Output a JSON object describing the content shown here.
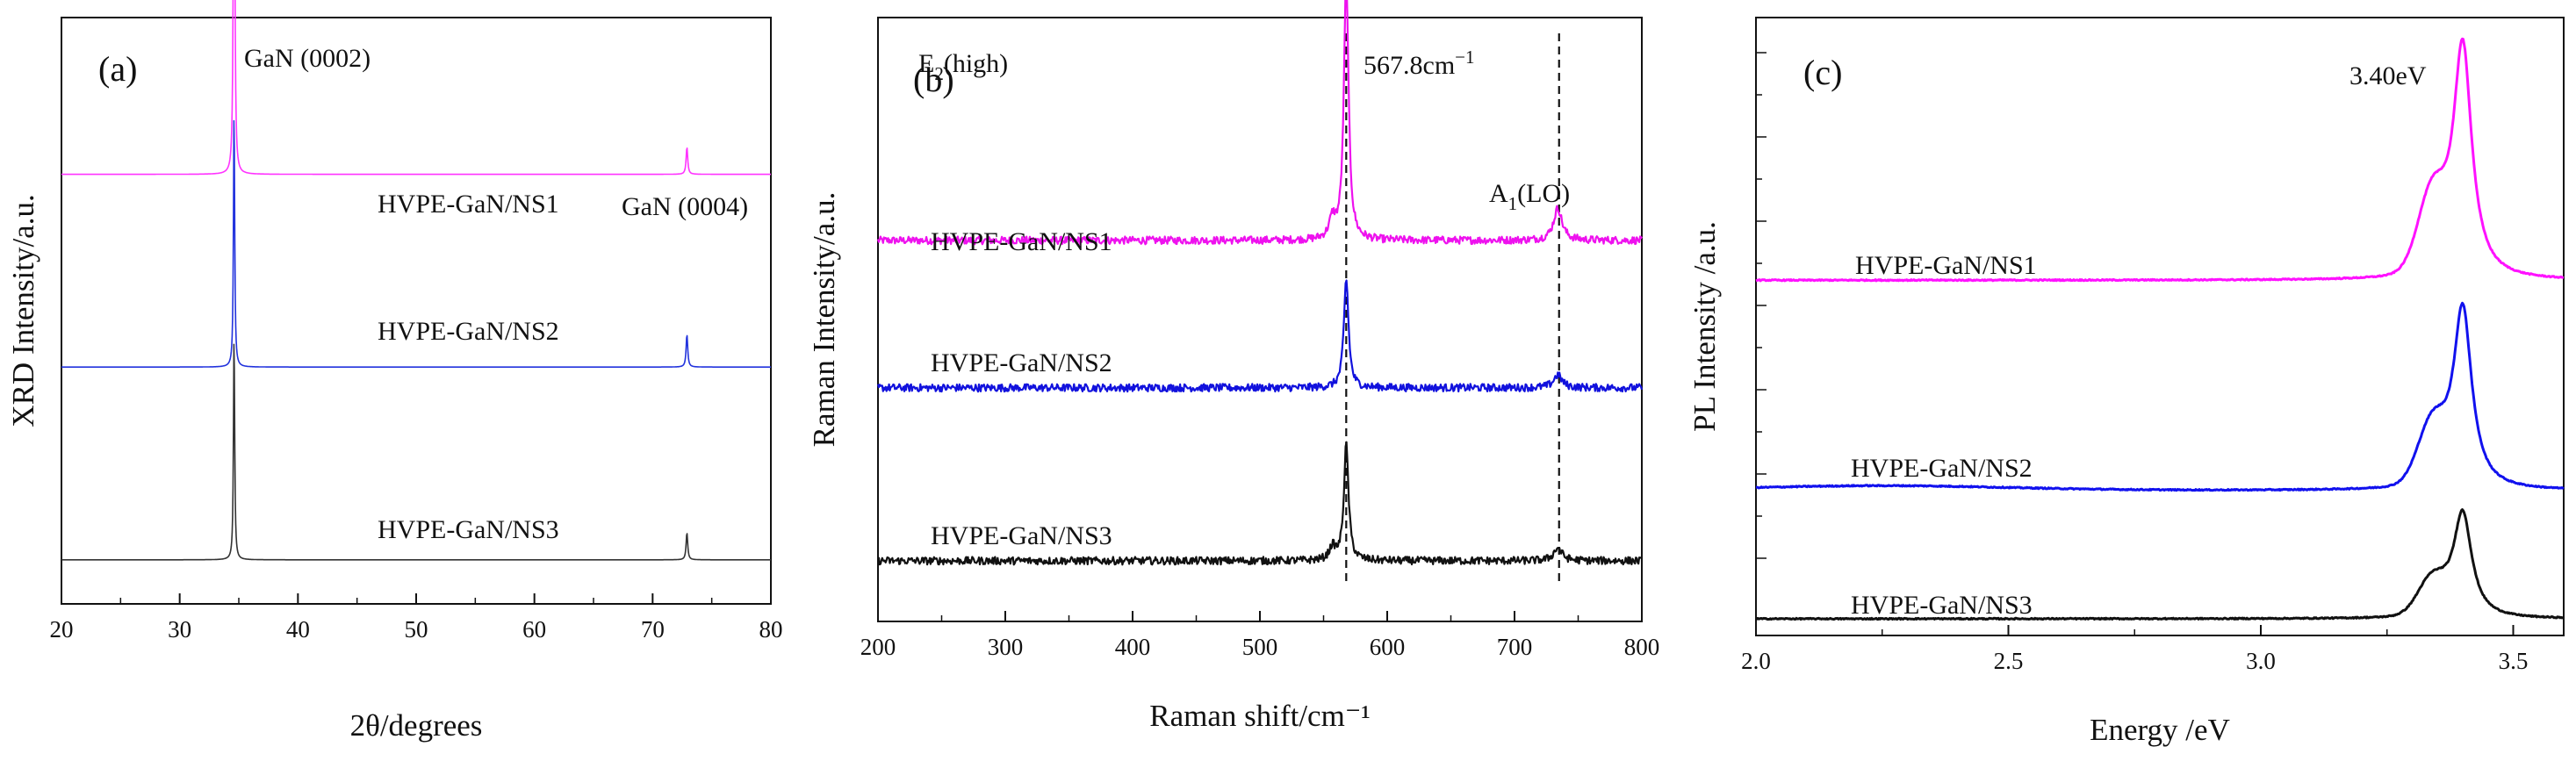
{
  "chart_data": [
    {
      "panel": "(a)",
      "type": "line",
      "title": "",
      "xlabel": "2θ/degrees",
      "ylabel": "XRD Intensity/a.u.",
      "xlim": [
        20,
        80
      ],
      "xticks": [
        20,
        30,
        40,
        50,
        60,
        70,
        80
      ],
      "y_ticks_labeled": false,
      "series": [
        {
          "name": "HVPE-GaN/NS1",
          "color": "#ff33ff",
          "baseline": 0.74,
          "peaks": [
            {
              "x": 34.6,
              "height": 1.0,
              "width": 0.06
            },
            {
              "x": 72.9,
              "height": 0.05,
              "width": 0.08
            }
          ]
        },
        {
          "name": "HVPE-GaN/NS2",
          "color": "#2233dd",
          "baseline": 0.38,
          "peaks": [
            {
              "x": 34.6,
              "height": 0.48,
              "width": 0.06
            },
            {
              "x": 72.9,
              "height": 0.06,
              "width": 0.08
            }
          ]
        },
        {
          "name": "HVPE-GaN/NS3",
          "color": "#333333",
          "baseline": 0.02,
          "peaks": [
            {
              "x": 34.6,
              "height": 0.42,
              "width": 0.06
            },
            {
              "x": 72.9,
              "height": 0.05,
              "width": 0.08
            }
          ]
        }
      ],
      "annotations": [
        "GaN (0002)",
        "GaN (0004)"
      ]
    },
    {
      "panel": "(b)",
      "type": "line",
      "title": "",
      "xlabel": "Raman shift/cm⁻¹",
      "ylabel": "Raman Intensity/a.u.",
      "xlim": [
        200,
        800
      ],
      "xticks": [
        200,
        300,
        400,
        500,
        600,
        700,
        800
      ],
      "y_ticks_labeled": false,
      "series": [
        {
          "name": "HVPE-GaN/NS1",
          "color": "#ee11ee",
          "baseline": 0.57,
          "peaks": [
            {
              "x": 567.8,
              "height": 0.41,
              "width": 2.2
            },
            {
              "x": 557,
              "height": 0.03,
              "width": 3
            },
            {
              "x": 734,
              "height": 0.05,
              "width": 4
            }
          ]
        },
        {
          "name": "HVPE-GaN/NS2",
          "color": "#1111dd",
          "baseline": 0.34,
          "peaks": [
            {
              "x": 567.8,
              "height": 0.17,
              "width": 2.2
            },
            {
              "x": 734,
              "height": 0.02,
              "width": 4
            }
          ]
        },
        {
          "name": "HVPE-GaN/NS3",
          "color": "#111111",
          "baseline": 0.07,
          "peaks": [
            {
              "x": 567.8,
              "height": 0.18,
              "width": 2.2
            },
            {
              "x": 557,
              "height": 0.02,
              "width": 3
            },
            {
              "x": 734,
              "height": 0.02,
              "width": 4
            }
          ]
        }
      ],
      "reference_lines": [
        567.8,
        735
      ],
      "annotations": {
        "e2_label": "E",
        "e2_sub": "2",
        "e2_suffix": "(high)",
        "e2_value": "567.8cm",
        "e2_value_sup": "−1",
        "a1_label": "A",
        "a1_sub": "1",
        "a1_suffix": "(LO)"
      }
    },
    {
      "panel": "(c)",
      "type": "line",
      "title": "",
      "xlabel": "Energy /eV",
      "ylabel": "PL Intensity /a.u.",
      "xlim": [
        2.0,
        3.6
      ],
      "xticks": [
        "2.0",
        "2.5",
        "3.0",
        "3.5"
      ],
      "y_ticks_labeled": false,
      "series": [
        {
          "name": "HVPE-GaN/NS1",
          "color": "#ff11ff",
          "baseline": 0.58,
          "peak_center": 3.4,
          "peak_height": 0.4,
          "shoulder_height": 0.13
        },
        {
          "name": "HVPE-GaN/NS2",
          "color": "#1111ee",
          "baseline": 0.22,
          "peak_center": 3.4,
          "peak_height": 0.31,
          "shoulder_height": 0.1
        },
        {
          "name": "HVPE-GaN/NS3",
          "color": "#111111",
          "baseline": 0.0,
          "peak_center": 3.4,
          "peak_height": 0.18,
          "shoulder_height": 0.06
        }
      ],
      "annotations": [
        "3.40eV"
      ]
    }
  ]
}
